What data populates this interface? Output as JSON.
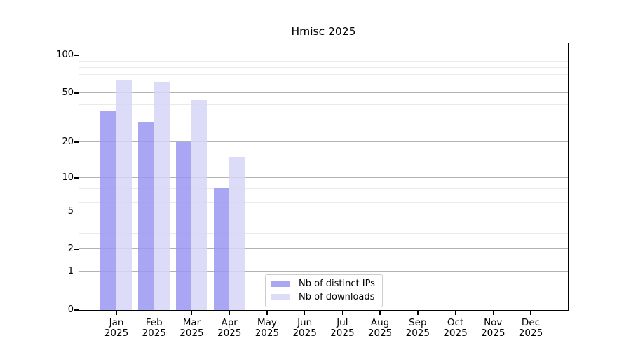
{
  "chart_data": {
    "type": "bar",
    "title": "Hmisc 2025",
    "categories": [
      "Jan",
      "Feb",
      "Mar",
      "Apr",
      "May",
      "Jun",
      "Jul",
      "Aug",
      "Sep",
      "Oct",
      "Nov",
      "Dec"
    ],
    "x_year_label": "2025",
    "series": [
      {
        "name": "Nb of distinct IPs",
        "color": "#9a98f1",
        "alpha": 0.85,
        "values": [
          36,
          29,
          20,
          8,
          0,
          0,
          0,
          0,
          0,
          0,
          0,
          0
        ]
      },
      {
        "name": "Nb of downloads",
        "color": "#d6d6f8",
        "alpha": 0.85,
        "values": [
          63,
          61,
          44,
          15,
          0,
          0,
          0,
          0,
          0,
          0,
          0,
          0
        ]
      }
    ],
    "yscale": "log10(value+1)",
    "ylim": [
      0,
      125
    ],
    "yticks_major": [
      0,
      1,
      2,
      5,
      10,
      20,
      50,
      100
    ],
    "yticks_minor": [
      3,
      4,
      6,
      7,
      8,
      9,
      30,
      40,
      60,
      70,
      80,
      90
    ],
    "grid": true,
    "legend_position": "inside-bottom-center-left",
    "colors": {
      "major_gridline": "#b3b3b3",
      "minor_gridline": "#eaeaea",
      "axis": "#000000",
      "text": "#000000",
      "legend_border": "#cccccc",
      "legend_background": "#ffffff",
      "figure_background": "#ffffff"
    }
  }
}
